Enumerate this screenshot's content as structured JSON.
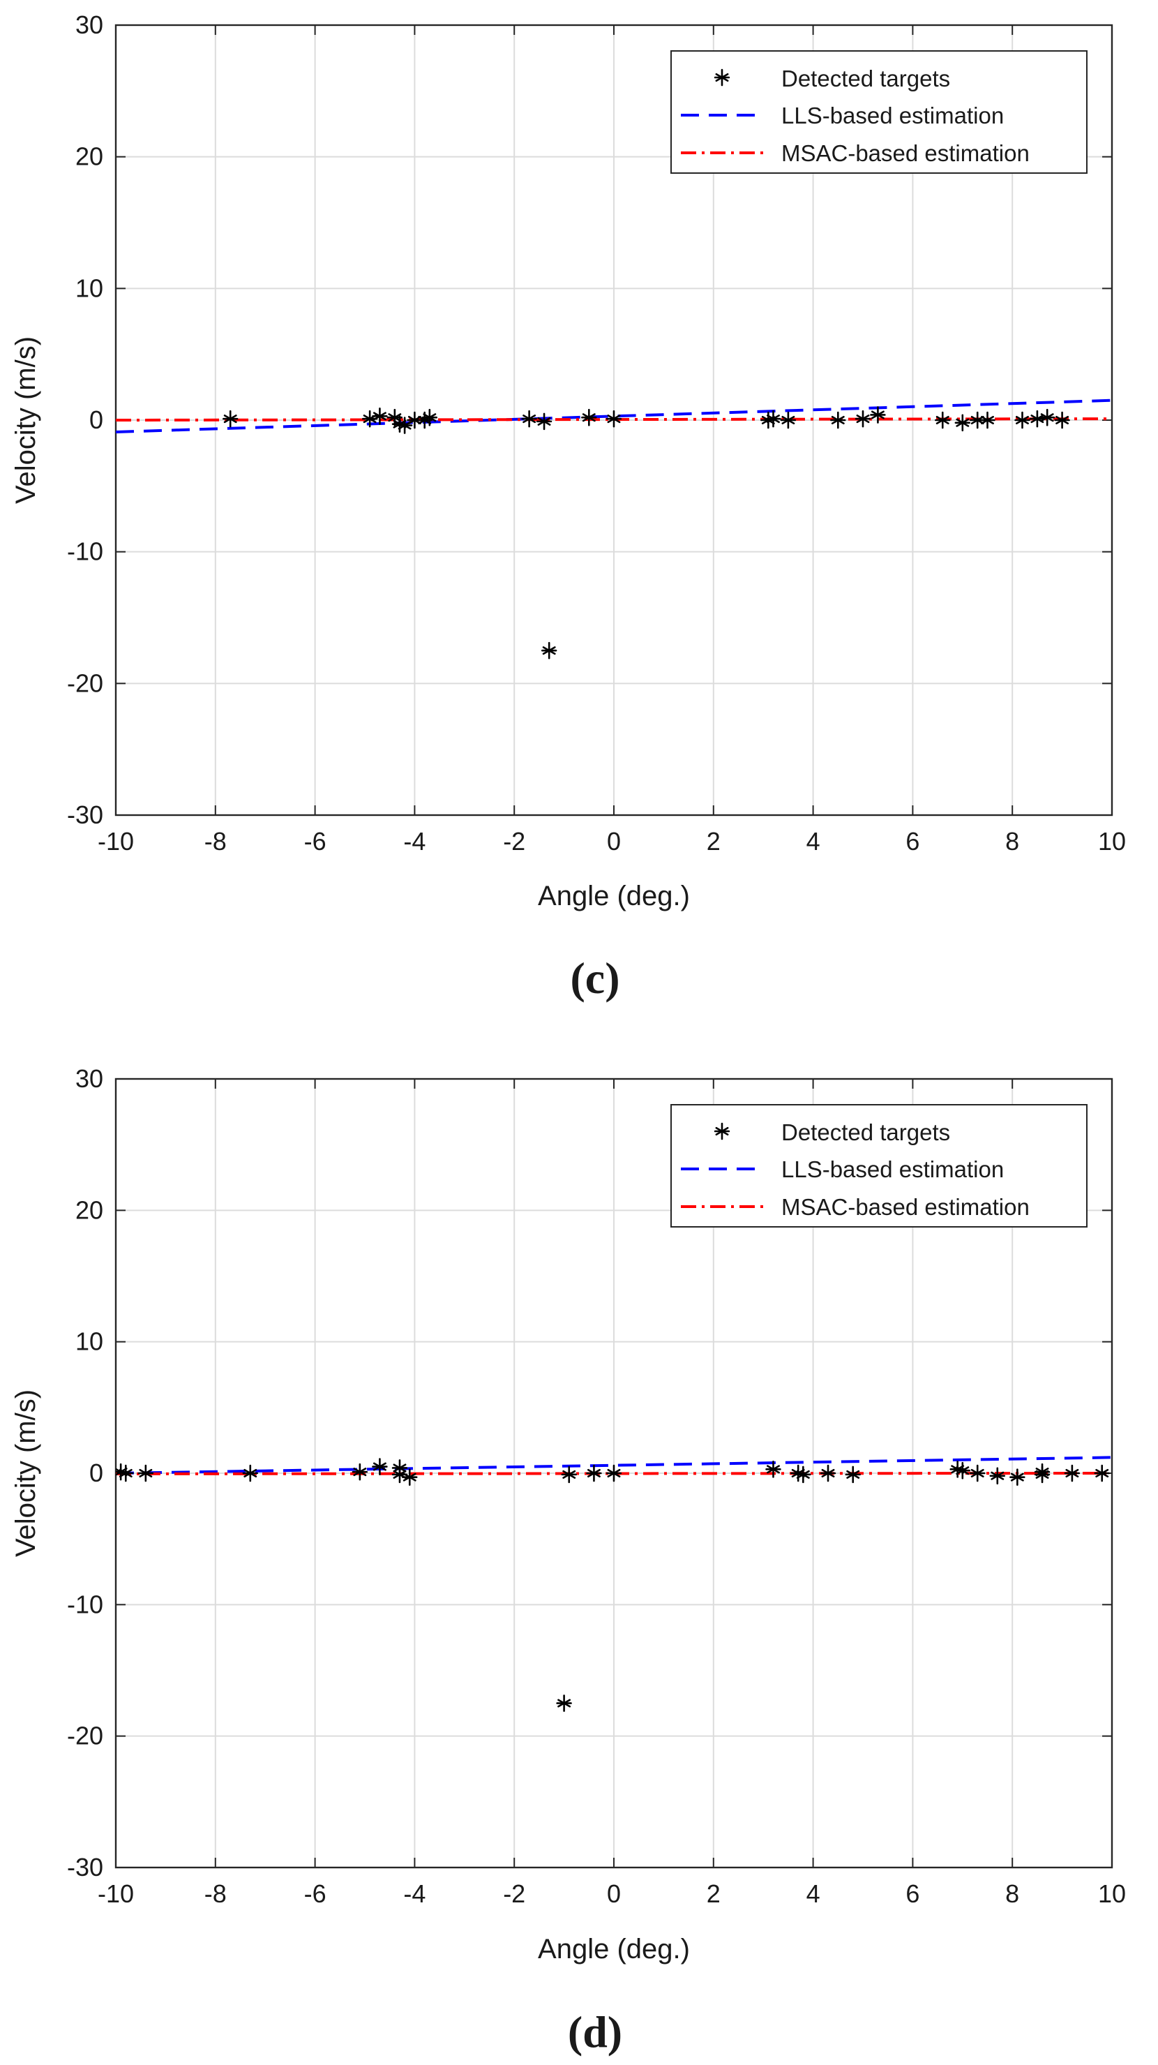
{
  "chart_data": [
    {
      "type": "scatter",
      "panel_label": "(c)",
      "xlabel": "Angle (deg.)",
      "ylabel": "Velocity (m/s)",
      "xlim": [
        -10,
        10
      ],
      "ylim": [
        -30,
        30
      ],
      "xticks": [
        -10,
        -8,
        -6,
        -4,
        -2,
        0,
        2,
        4,
        6,
        8,
        10
      ],
      "yticks": [
        -30,
        -20,
        -10,
        0,
        10,
        20,
        30
      ],
      "grid": true,
      "legend_position": "top-right",
      "series": [
        {
          "name": "Detected targets",
          "kind": "points",
          "color": "#000000",
          "marker": "asterisk",
          "x": [
            -7.7,
            -4.9,
            -4.7,
            -4.4,
            -4.3,
            -4.2,
            -4.0,
            -3.8,
            -3.7,
            -1.7,
            -1.4,
            -1.3,
            -0.5,
            0.0,
            3.1,
            3.2,
            3.5,
            4.5,
            5.0,
            5.3,
            6.6,
            7.0,
            7.3,
            7.5,
            8.2,
            8.5,
            8.7,
            9.0
          ],
          "y": [
            0.1,
            0.1,
            0.3,
            0.2,
            -0.3,
            -0.4,
            0.0,
            0.0,
            0.2,
            0.1,
            -0.1,
            -17.5,
            0.2,
            0.1,
            0.0,
            0.1,
            0.0,
            0.0,
            0.1,
            0.4,
            0.0,
            -0.2,
            0.0,
            0.0,
            0.0,
            0.1,
            0.2,
            0.0
          ]
        },
        {
          "name": "LLS-based estimation",
          "kind": "line",
          "style": "dashed",
          "color": "#0000ff",
          "x": [
            -10,
            10
          ],
          "y": [
            -0.9,
            1.5
          ]
        },
        {
          "name": "MSAC-based estimation",
          "kind": "line",
          "style": "dashdot",
          "color": "#ff0000",
          "x": [
            -10,
            10
          ],
          "y": [
            0.0,
            0.1
          ]
        }
      ]
    },
    {
      "type": "scatter",
      "panel_label": "(d)",
      "xlabel": "Angle (deg.)",
      "ylabel": "Velocity (m/s)",
      "xlim": [
        -10,
        10
      ],
      "ylim": [
        -30,
        30
      ],
      "xticks": [
        -10,
        -8,
        -6,
        -4,
        -2,
        0,
        2,
        4,
        6,
        8,
        10
      ],
      "yticks": [
        -30,
        -20,
        -10,
        0,
        10,
        20,
        30
      ],
      "grid": true,
      "legend_position": "top-right",
      "series": [
        {
          "name": "Detected targets",
          "kind": "points",
          "color": "#000000",
          "marker": "asterisk",
          "x": [
            -9.9,
            -9.8,
            -9.4,
            -7.3,
            -5.1,
            -4.7,
            -4.3,
            -4.3,
            -4.1,
            -1.0,
            -0.9,
            -0.4,
            0.0,
            3.2,
            3.7,
            3.8,
            4.3,
            4.8,
            6.9,
            7.0,
            7.3,
            7.7,
            8.1,
            8.6,
            8.6,
            9.2,
            9.8
          ],
          "y": [
            0.1,
            0.0,
            0.0,
            0.0,
            0.1,
            0.5,
            0.4,
            -0.1,
            -0.3,
            -17.5,
            -0.1,
            0.0,
            0.0,
            0.3,
            0.0,
            -0.1,
            0.0,
            -0.1,
            0.3,
            0.2,
            0.0,
            -0.2,
            -0.3,
            0.1,
            -0.1,
            0.0,
            0.0
          ]
        },
        {
          "name": "LLS-based estimation",
          "kind": "line",
          "style": "dashed",
          "color": "#0000ff",
          "x": [
            -10,
            10
          ],
          "y": [
            0.0,
            1.2
          ]
        },
        {
          "name": "MSAC-based estimation",
          "kind": "line",
          "style": "dashdot",
          "color": "#ff0000",
          "x": [
            -10,
            10
          ],
          "y": [
            -0.05,
            0.0
          ]
        }
      ]
    }
  ]
}
